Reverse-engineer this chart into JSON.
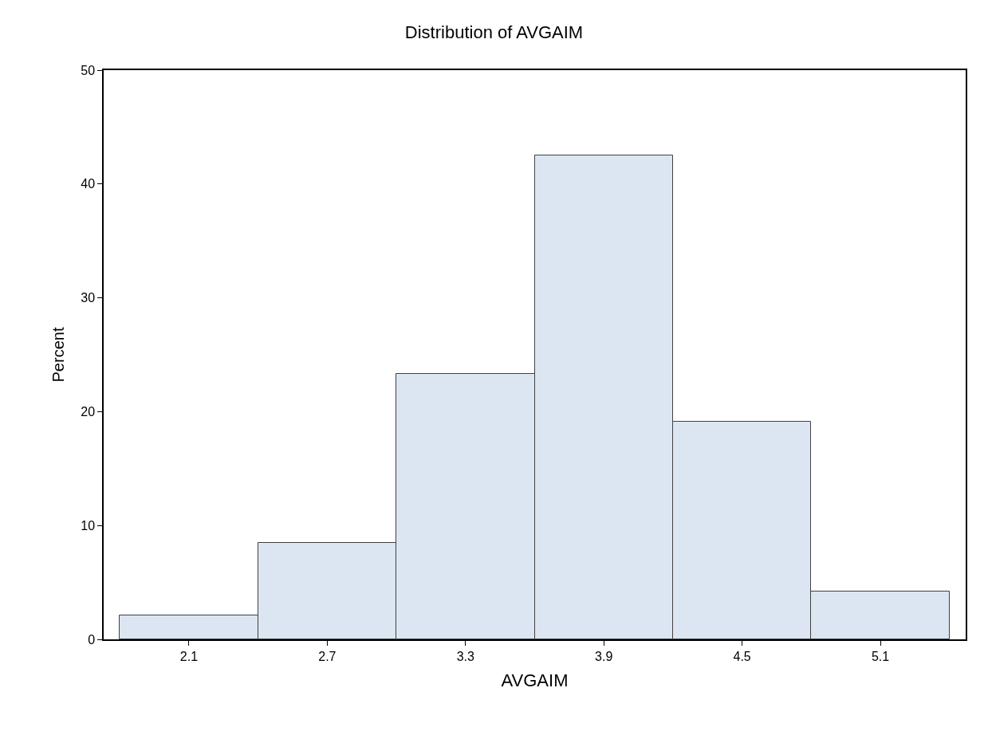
{
  "chart_data": {
    "type": "histogram",
    "title": "Distribution of AVGAIM",
    "xlabel": "AVGAIM",
    "ylabel": "Percent",
    "bins": [
      1.8,
      2.4,
      3.0,
      3.6,
      4.2,
      4.8,
      5.4
    ],
    "values": [
      2.1,
      8.5,
      23.3,
      42.5,
      19.1,
      4.2
    ],
    "color": "#dce6f2",
    "xlim": [
      1.73,
      5.47
    ],
    "xticks": [
      2.1,
      2.7,
      3.3,
      3.9,
      4.5,
      5.1
    ],
    "ylim": [
      0,
      50
    ],
    "yticks": [
      0,
      10,
      20,
      30,
      40,
      50
    ],
    "legend": false
  }
}
